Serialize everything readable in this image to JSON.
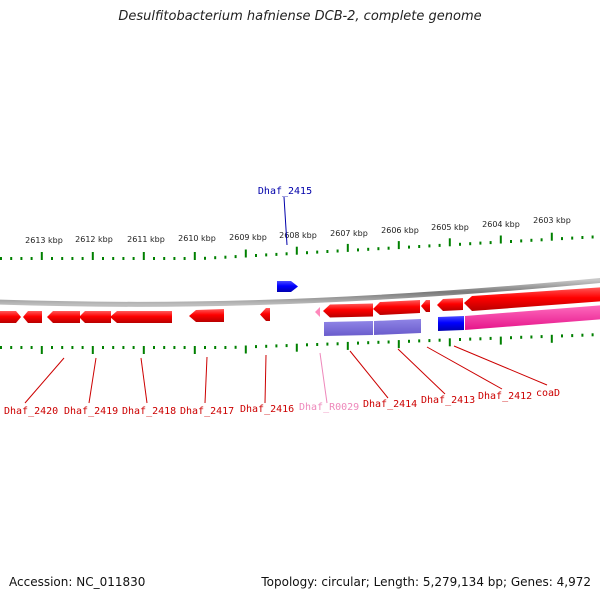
{
  "title": "Desulfitobacterium hafniense DCB-2, complete genome",
  "footer": {
    "accession": "Accession: NC_011830",
    "topology": "Topology: circular; Length: 5,279,134 bp; Genes: 4,972"
  },
  "ruler_labels": [
    "2613 kbp",
    "2612 kbp",
    "2611 kbp",
    "2610 kbp",
    "2609 kbp",
    "2608 kbp",
    "2607 kbp",
    "2606 kbp",
    "2605 kbp",
    "2604 kbp",
    "2603 kbp"
  ],
  "gene_labels": {
    "top": "Dhaf_2415",
    "bottom": [
      "Dhaf_2420",
      "Dhaf_2419",
      "Dhaf_2418",
      "Dhaf_2417",
      "Dhaf_2416",
      "Dhaf_R0029",
      "Dhaf_2414",
      "Dhaf_2413",
      "Dhaf_2412",
      "coaD"
    ]
  },
  "colors": {
    "gene_red": "#ff0000",
    "gene_blue": "#0000ff",
    "rna_pink": "#ff88bb",
    "purple": "#7a6cd8",
    "magenta": "#ff2d9e",
    "label_red": "#cc0000",
    "label_blue": "#0000aa",
    "label_pink": "#ee88bb",
    "tick_green": "#008000",
    "backbone": "#888888"
  }
}
